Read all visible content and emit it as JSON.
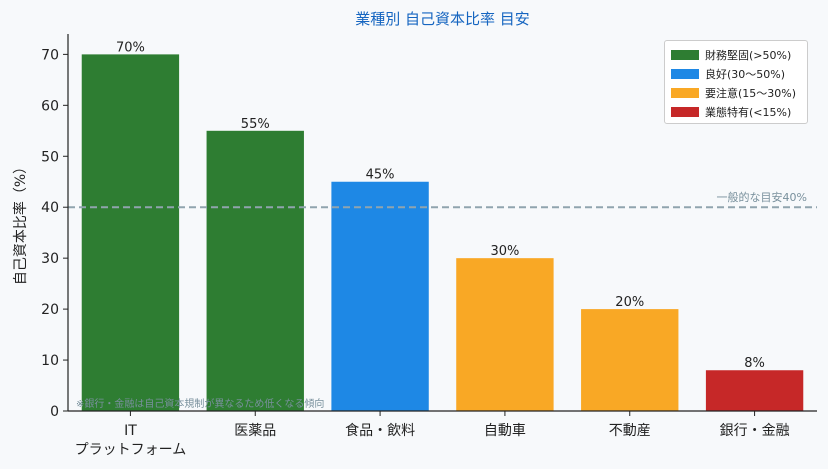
{
  "chart_data": {
    "type": "bar",
    "title": "業種別 自己資本比率 目安",
    "ylabel": "自己資本比率（%）",
    "xlabel": "",
    "ylim": [
      0,
      74
    ],
    "yticks": [
      0,
      10,
      20,
      30,
      40,
      50,
      60,
      70
    ],
    "categories": [
      "IT\nプラットフォーム",
      "医薬品",
      "食品・飲料",
      "自動車",
      "不動産",
      "銀行・金融"
    ],
    "values": [
      70,
      55,
      45,
      30,
      20,
      8
    ],
    "value_labels": [
      "70%",
      "55%",
      "45%",
      "30%",
      "20%",
      "8%"
    ],
    "bar_colors": [
      "#2e7d32",
      "#2e7d32",
      "#1e88e5",
      "#f9a825",
      "#f9a825",
      "#c62828"
    ],
    "reference_line": {
      "value": 40,
      "label": "一般的な目安40%",
      "color": "#90a4ae"
    },
    "footnote": "※銀行・金融は自己資本規制が異なるため低くなる傾向",
    "legend": [
      {
        "label": "財務堅固(>50%)",
        "color": "#2e7d32"
      },
      {
        "label": "良好(30〜50%)",
        "color": "#1e88e5"
      },
      {
        "label": "要注意(15〜30%)",
        "color": "#f9a825"
      },
      {
        "label": "業態特有(<15%)",
        "color": "#c62828"
      }
    ],
    "legend_position": "top-right",
    "grid": false
  }
}
